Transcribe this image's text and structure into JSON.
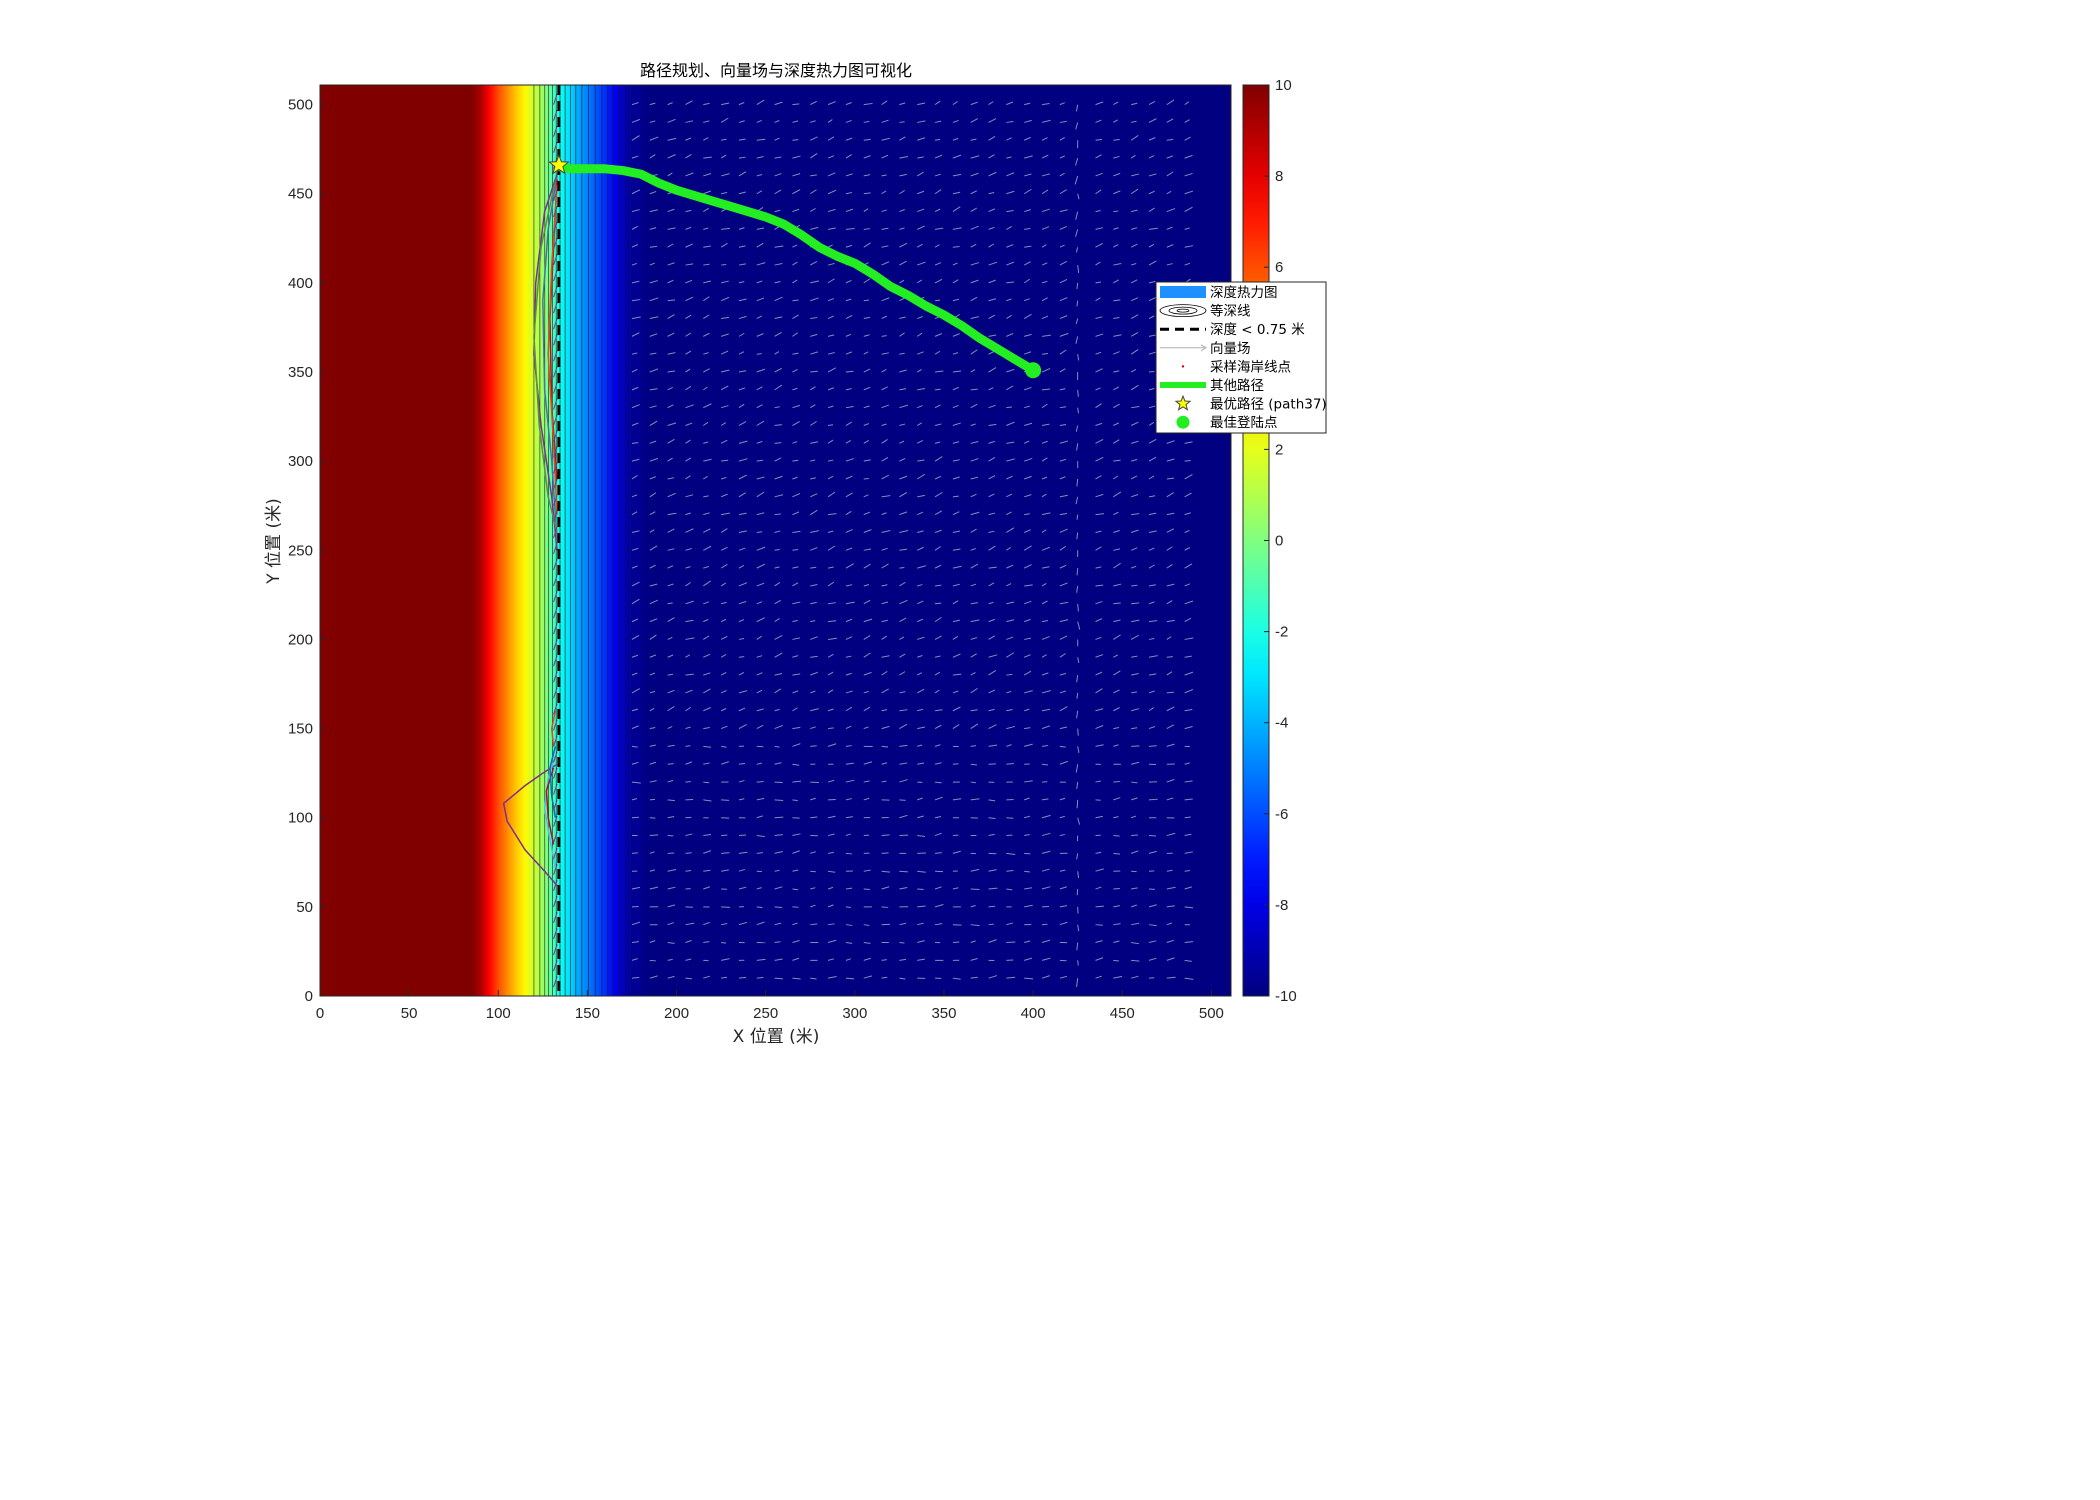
{
  "chart_data": {
    "type": "heatmap",
    "title": "路径规划、向量场与深度热力图可视化",
    "xlabel": "X 位置 (米)",
    "ylabel": "Y 位置 (米)",
    "xlim": [
      0,
      511
    ],
    "ylim": [
      0,
      511
    ],
    "xticks": [
      0,
      50,
      100,
      150,
      200,
      250,
      300,
      350,
      400,
      450,
      500
    ],
    "yticks": [
      0,
      50,
      100,
      150,
      200,
      250,
      300,
      350,
      400,
      450,
      500
    ],
    "grid": false,
    "legend_position": "east",
    "colormap": "jet",
    "colorbar": {
      "range": [
        -10,
        10
      ],
      "ticks": [
        -10,
        -8,
        -6,
        -4,
        -2,
        0,
        2,
        4,
        6,
        8,
        10
      ]
    },
    "depth_profile": {
      "x": [
        0,
        85,
        90,
        95,
        100,
        105,
        110,
        115,
        120,
        125,
        130,
        135,
        140,
        145,
        150,
        155,
        160,
        165,
        170,
        175,
        185,
        511
      ],
      "value": [
        10,
        10,
        9.2,
        7.5,
        6.0,
        4.8,
        3.6,
        2.6,
        1.5,
        0.6,
        -0.8,
        -2.2,
        -3.2,
        -4.2,
        -5.0,
        -5.8,
        -6.6,
        -7.6,
        -8.6,
        -9.5,
        -10,
        -10
      ]
    },
    "depth_threshold_line": {
      "label": "深度 < 0.75 米",
      "x": 134,
      "color": "#000000"
    },
    "best_path": {
      "label": "其他路径",
      "color": "#22ee22",
      "points": [
        [
          400,
          351
        ],
        [
          395,
          354
        ],
        [
          385,
          360
        ],
        [
          370,
          369
        ],
        [
          360,
          376
        ],
        [
          350,
          382
        ],
        [
          340,
          387
        ],
        [
          330,
          393
        ],
        [
          320,
          398
        ],
        [
          310,
          405
        ],
        [
          300,
          411
        ],
        [
          290,
          415
        ],
        [
          280,
          420
        ],
        [
          270,
          427
        ],
        [
          260,
          433
        ],
        [
          250,
          437
        ],
        [
          240,
          440
        ],
        [
          230,
          443
        ],
        [
          220,
          446
        ],
        [
          210,
          449
        ],
        [
          200,
          452
        ],
        [
          190,
          456
        ],
        [
          180,
          461
        ],
        [
          170,
          463
        ],
        [
          160,
          464
        ],
        [
          150,
          464
        ],
        [
          140,
          464
        ],
        [
          135,
          465
        ]
      ]
    },
    "optimal_start": {
      "label": "最优路径 (path37)",
      "x": 134,
      "y": 466,
      "color": "#ffff00"
    },
    "best_landing_point": {
      "label": "最佳登陆点",
      "x": 400,
      "y": 351,
      "color": "#22ee22"
    },
    "other_paths": [
      {
        "color": "#7e2f8e",
        "points": [
          [
            133,
            461
          ],
          [
            126,
            440
          ],
          [
            121,
            400
          ],
          [
            120,
            360
          ],
          [
            124,
            320
          ],
          [
            130,
            280
          ],
          [
            133,
            250
          ]
        ]
      },
      {
        "color": "#4f6fa5",
        "points": [
          [
            133,
            460
          ],
          [
            128,
            430
          ],
          [
            125,
            390
          ],
          [
            126,
            340
          ],
          [
            130,
            300
          ],
          [
            133,
            255
          ]
        ]
      },
      {
        "color": "#a2142f",
        "points": [
          [
            133,
            458
          ],
          [
            131,
            420
          ],
          [
            129,
            380
          ],
          [
            130,
            330
          ],
          [
            133,
            290
          ]
        ]
      },
      {
        "color": "#5a8f4a",
        "points": [
          [
            133,
            462
          ],
          [
            124,
            420
          ],
          [
            120,
            370
          ],
          [
            123,
            320
          ],
          [
            128,
            280
          ],
          [
            133,
            260
          ]
        ]
      },
      {
        "color": "#d95319",
        "points": [
          [
            133,
            455
          ],
          [
            130,
            410
          ],
          [
            128,
            360
          ],
          [
            131,
            310
          ],
          [
            133,
            270
          ]
        ]
      },
      {
        "color": "#7e2f8e",
        "points": [
          [
            133,
            130
          ],
          [
            125,
            125
          ],
          [
            115,
            118
          ],
          [
            103,
            108
          ],
          [
            105,
            98
          ],
          [
            115,
            82
          ],
          [
            126,
            70
          ],
          [
            133,
            62
          ]
        ]
      },
      {
        "color": "#4dbeee",
        "points": [
          [
            132,
            135
          ],
          [
            128,
            122
          ],
          [
            126,
            105
          ],
          [
            129,
            88
          ],
          [
            132,
            72
          ]
        ]
      },
      {
        "color": "#a2142f",
        "points": [
          [
            131,
            128
          ],
          [
            127,
            115
          ],
          [
            128,
            100
          ],
          [
            131,
            85
          ]
        ]
      },
      {
        "color": "#0072bd",
        "points": [
          [
            132,
            140
          ],
          [
            129,
            128
          ],
          [
            130,
            112
          ],
          [
            132,
            100
          ]
        ]
      },
      {
        "color": "#d95319",
        "points": [
          [
            132,
            160
          ],
          [
            130,
            150
          ],
          [
            131,
            140
          ]
        ]
      }
    ],
    "legend": [
      {
        "label": "深度热力图",
        "symbol": "patch",
        "color": "#1e90ff"
      },
      {
        "label": "等深线",
        "symbol": "contour",
        "color": "#000000"
      },
      {
        "label": "深度 < 0.75 米",
        "symbol": "dashed-line",
        "color": "#000000"
      },
      {
        "label": "向量场",
        "symbol": "arrow",
        "color": "#b0b0b0"
      },
      {
        "label": "采样海岸线点",
        "symbol": "dot",
        "color": "#d00000"
      },
      {
        "label": "其他路径",
        "symbol": "thick-line",
        "color": "#22ee22"
      },
      {
        "label": "最优路径 (path37)",
        "symbol": "star",
        "color": "#ffff00"
      },
      {
        "label": "最佳登陆点",
        "symbol": "circle",
        "color": "#22ee22"
      }
    ]
  }
}
